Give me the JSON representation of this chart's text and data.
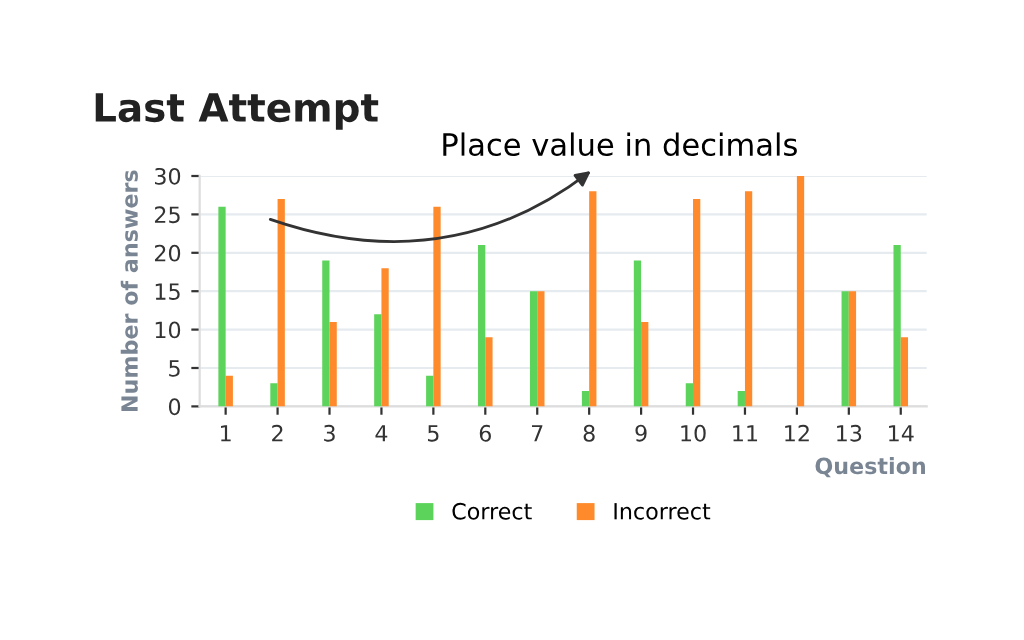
{
  "chart_data": {
    "type": "bar",
    "title": "Last Attempt",
    "xlabel": "Question",
    "ylabel": "Number of answers",
    "categories": [
      "1",
      "2",
      "3",
      "4",
      "5",
      "6",
      "7",
      "8",
      "9",
      "10",
      "11",
      "12",
      "13",
      "14"
    ],
    "series": [
      {
        "name": "Correct",
        "color": "#5cd35a",
        "values": [
          26,
          3,
          19,
          12,
          4,
          21,
          15,
          2,
          19,
          3,
          2,
          0,
          15,
          21
        ]
      },
      {
        "name": "Incorrect",
        "color": "#ff8a2b",
        "values": [
          4,
          27,
          11,
          18,
          26,
          9,
          15,
          28,
          11,
          27,
          28,
          30,
          15,
          9
        ]
      }
    ],
    "ylim": [
      0,
      30
    ],
    "yticks": [
      0,
      5,
      10,
      15,
      20,
      25,
      30
    ],
    "grid": "y",
    "legend": "bottom",
    "annotations": [
      "Place value in decimals"
    ]
  }
}
